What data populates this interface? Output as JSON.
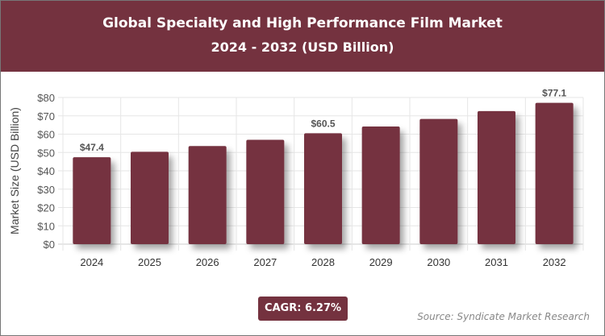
{
  "header": {
    "title": "Global Specialty and High Performance Film Market",
    "subtitle": "2024 - 2032 (USD Billion)"
  },
  "chart_data": {
    "type": "bar",
    "title": "Global Specialty and High Performance Film Market",
    "subtitle": "2024 - 2032 (USD Billion)",
    "xlabel": "",
    "ylabel": "Market Size (USD Billion)",
    "categories": [
      "2024",
      "2025",
      "2026",
      "2027",
      "2028",
      "2029",
      "2030",
      "2031",
      "2032"
    ],
    "values": [
      47.4,
      50.4,
      53.5,
      56.9,
      60.5,
      64.2,
      68.3,
      72.6,
      77.1
    ],
    "data_labels": {
      "2024": "$47.4",
      "2028": "$60.5",
      "2032": "$77.1"
    },
    "ylim": [
      0,
      80
    ],
    "yticks": [
      "$0",
      "$10",
      "$20",
      "$30",
      "$40",
      "$50",
      "$60",
      "$70",
      "$80"
    ],
    "grid": true,
    "bar_color": "#74303f"
  },
  "footer": {
    "cagr": "CAGR: 6.27%",
    "source": "Source: Syndicate Market Research"
  }
}
